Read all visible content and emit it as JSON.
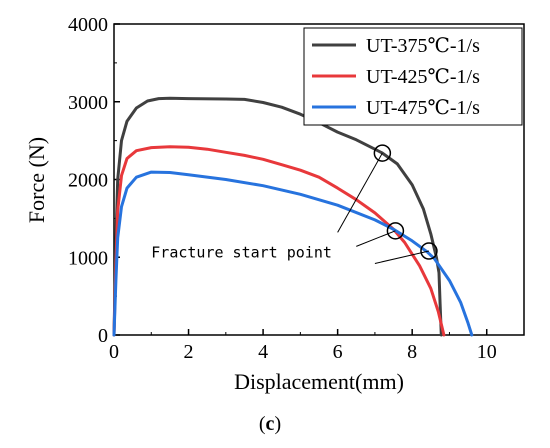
{
  "figure": {
    "label": "(c)"
  },
  "chart_data": {
    "type": "line",
    "xlabel": "Displacement(mm)",
    "ylabel": "Force (N)",
    "xlim": [
      0,
      11
    ],
    "ylim": [
      0,
      4000
    ],
    "xticks": [
      0,
      2,
      4,
      6,
      8,
      10
    ],
    "yticks": [
      0,
      1000,
      2000,
      3000,
      4000
    ],
    "grid": false,
    "legend_position": "top-right",
    "series": [
      {
        "name": "UT-375℃-1/s",
        "color": "#404040",
        "points": [
          [
            0,
            0
          ],
          [
            0.05,
            1200
          ],
          [
            0.1,
            2000
          ],
          [
            0.2,
            2500
          ],
          [
            0.35,
            2750
          ],
          [
            0.6,
            2920
          ],
          [
            0.9,
            3010
          ],
          [
            1.2,
            3040
          ],
          [
            1.5,
            3045
          ],
          [
            2,
            3040
          ],
          [
            3,
            3035
          ],
          [
            3.5,
            3030
          ],
          [
            4,
            2990
          ],
          [
            4.5,
            2930
          ],
          [
            5,
            2840
          ],
          [
            5.5,
            2730
          ],
          [
            6,
            2610
          ],
          [
            6.5,
            2510
          ],
          [
            7,
            2390
          ],
          [
            7.2,
            2340
          ],
          [
            7.6,
            2200
          ],
          [
            8,
            1930
          ],
          [
            8.3,
            1620
          ],
          [
            8.5,
            1300
          ],
          [
            8.65,
            1000
          ],
          [
            8.72,
            800
          ],
          [
            8.75,
            400
          ],
          [
            8.78,
            0
          ]
        ]
      },
      {
        "name": "UT-425℃-1/s",
        "color": "#e8383b",
        "points": [
          [
            0,
            0
          ],
          [
            0.05,
            900
          ],
          [
            0.1,
            1600
          ],
          [
            0.2,
            2050
          ],
          [
            0.35,
            2270
          ],
          [
            0.6,
            2370
          ],
          [
            1,
            2410
          ],
          [
            1.5,
            2420
          ],
          [
            2,
            2415
          ],
          [
            2.5,
            2390
          ],
          [
            3,
            2350
          ],
          [
            3.5,
            2310
          ],
          [
            4,
            2260
          ],
          [
            4.5,
            2190
          ],
          [
            5,
            2120
          ],
          [
            5.5,
            2030
          ],
          [
            6,
            1890
          ],
          [
            6.5,
            1740
          ],
          [
            7,
            1570
          ],
          [
            7.5,
            1360
          ],
          [
            7.8,
            1190
          ],
          [
            8.2,
            890
          ],
          [
            8.5,
            600
          ],
          [
            8.7,
            300
          ],
          [
            8.85,
            0
          ]
        ]
      },
      {
        "name": "UT-475℃-1/s",
        "color": "#2773de",
        "points": [
          [
            0,
            0
          ],
          [
            0.05,
            700
          ],
          [
            0.1,
            1250
          ],
          [
            0.2,
            1650
          ],
          [
            0.35,
            1890
          ],
          [
            0.6,
            2030
          ],
          [
            1,
            2095
          ],
          [
            1.5,
            2090
          ],
          [
            2,
            2060
          ],
          [
            3,
            2000
          ],
          [
            4,
            1920
          ],
          [
            5,
            1810
          ],
          [
            6,
            1670
          ],
          [
            7,
            1480
          ],
          [
            7.5,
            1360
          ],
          [
            8,
            1210
          ],
          [
            8.4,
            1070
          ],
          [
            8.6,
            980
          ],
          [
            9,
            700
          ],
          [
            9.3,
            420
          ],
          [
            9.5,
            150
          ],
          [
            9.6,
            0
          ]
        ]
      }
    ],
    "markers": [
      {
        "x": 7.2,
        "y": 2340
      },
      {
        "x": 7.55,
        "y": 1340
      },
      {
        "x": 8.45,
        "y": 1080
      }
    ],
    "annotation": {
      "text": "Fracture start point",
      "text_x": 1.0,
      "text_y": 1000,
      "leaders": [
        {
          "from": [
            6,
            1320
          ],
          "to": [
            7.2,
            2340
          ]
        },
        {
          "from": [
            6.5,
            1140
          ],
          "to": [
            7.55,
            1340
          ]
        },
        {
          "from": [
            7.0,
            920
          ],
          "to": [
            8.45,
            1080
          ]
        }
      ]
    }
  }
}
